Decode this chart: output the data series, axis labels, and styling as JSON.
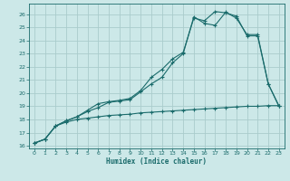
{
  "xlabel": "Humidex (Indice chaleur)",
  "bg_color": "#cce8e8",
  "grid_color": "#aacccc",
  "line_color": "#1a6b6b",
  "xlim": [
    -0.5,
    23.5
  ],
  "ylim": [
    15.8,
    26.8
  ],
  "xticks": [
    0,
    1,
    2,
    3,
    4,
    5,
    6,
    7,
    8,
    9,
    10,
    11,
    12,
    13,
    14,
    15,
    16,
    17,
    18,
    19,
    20,
    21,
    22,
    23
  ],
  "yticks": [
    16,
    17,
    18,
    19,
    20,
    21,
    22,
    23,
    24,
    25,
    26
  ],
  "line1_x": [
    0,
    1,
    2,
    3,
    4,
    5,
    6,
    7,
    8,
    9,
    10,
    11,
    12,
    13,
    14,
    15,
    16,
    17,
    18,
    19,
    20,
    21,
    22,
    23
  ],
  "line1_y": [
    16.2,
    16.5,
    17.5,
    17.8,
    18.0,
    18.1,
    18.2,
    18.3,
    18.35,
    18.4,
    18.5,
    18.55,
    18.6,
    18.65,
    18.7,
    18.75,
    18.8,
    18.85,
    18.9,
    18.95,
    19.0,
    19.0,
    19.05,
    19.05
  ],
  "line2_x": [
    0,
    1,
    2,
    3,
    4,
    5,
    6,
    7,
    8,
    9,
    10,
    11,
    12,
    13,
    14,
    15,
    16,
    17,
    18,
    19,
    20,
    21,
    22,
    23
  ],
  "line2_y": [
    16.2,
    16.5,
    17.5,
    17.9,
    18.2,
    18.6,
    18.9,
    19.3,
    19.4,
    19.5,
    20.1,
    20.7,
    21.2,
    22.3,
    23.0,
    25.8,
    25.3,
    25.15,
    26.15,
    25.7,
    24.45,
    24.45,
    20.7,
    19.0
  ],
  "line3_x": [
    0,
    1,
    2,
    3,
    4,
    5,
    6,
    7,
    8,
    9,
    10,
    11,
    12,
    13,
    14,
    15,
    16,
    17,
    18,
    19,
    20,
    21,
    22,
    23
  ],
  "line3_y": [
    16.2,
    16.5,
    17.5,
    17.9,
    18.2,
    18.7,
    19.2,
    19.35,
    19.45,
    19.6,
    20.2,
    21.2,
    21.8,
    22.6,
    23.1,
    25.7,
    25.5,
    26.2,
    26.1,
    25.85,
    24.35,
    24.35,
    20.7,
    19.05
  ]
}
